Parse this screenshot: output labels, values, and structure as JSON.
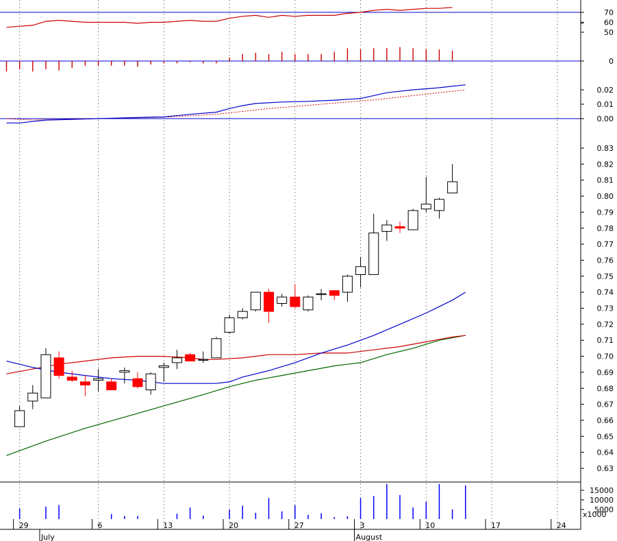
{
  "colors": {
    "up_candle": "#ffffff",
    "down_candle": "#ff0000",
    "candle_border": "#000000",
    "ma_fast": "#0000cc",
    "ma_mid": "#cc0000",
    "ma_slow": "#006600",
    "rsi": "#cc0000",
    "macd": "#0000cc",
    "macd_signal": "#cc0000",
    "momentum": "#cc0000",
    "volume": "#0000ff",
    "panel_line": "#0000cc",
    "grid": "#999999"
  },
  "chart_data": {
    "type": "candlestick",
    "x_labels": [
      {
        "day": 1,
        "label": "29"
      },
      {
        "day": 7,
        "label": "6"
      },
      {
        "day": 12,
        "label": "13"
      },
      {
        "day": 17,
        "label": "20"
      },
      {
        "day": 22,
        "label": "27"
      },
      {
        "day": 27,
        "label": "3"
      },
      {
        "day": 32,
        "label": "10"
      },
      {
        "day": 37,
        "label": "17"
      },
      {
        "day": 42,
        "label": "24"
      }
    ],
    "month_labels": [
      {
        "day": 3,
        "label": "July"
      },
      {
        "day": 27,
        "label": "August"
      }
    ],
    "price_panel": {
      "ylim": [
        0.62,
        0.835
      ],
      "yticks": [
        "0.63",
        "0.64",
        "0.65",
        "0.66",
        "0.67",
        "0.68",
        "0.69",
        "0.70",
        "0.71",
        "0.72",
        "0.73",
        "0.74",
        "0.75",
        "0.76",
        "0.77",
        "0.78",
        "0.79",
        "0.80",
        "0.81",
        "0.82",
        "0.83"
      ],
      "candles": [
        {
          "day": 1,
          "o": 0.656,
          "h": 0.669,
          "l": 0.656,
          "c": 0.666
        },
        {
          "day": 2,
          "o": 0.672,
          "h": 0.682,
          "l": 0.667,
          "c": 0.677
        },
        {
          "day": 3,
          "o": 0.674,
          "h": 0.705,
          "l": 0.674,
          "c": 0.701
        },
        {
          "day": 4,
          "o": 0.699,
          "h": 0.703,
          "l": 0.686,
          "c": 0.688
        },
        {
          "day": 5,
          "o": 0.687,
          "h": 0.691,
          "l": 0.684,
          "c": 0.685
        },
        {
          "day": 6,
          "o": 0.684,
          "h": 0.688,
          "l": 0.675,
          "c": 0.682
        },
        {
          "day": 7,
          "o": 0.685,
          "h": 0.692,
          "l": 0.678,
          "c": 0.686
        },
        {
          "day": 8,
          "o": 0.684,
          "h": 0.686,
          "l": 0.679,
          "c": 0.679
        },
        {
          "day": 9,
          "o": 0.69,
          "h": 0.693,
          "l": 0.683,
          "c": 0.691
        },
        {
          "day": 10,
          "o": 0.686,
          "h": 0.69,
          "l": 0.68,
          "c": 0.681
        },
        {
          "day": 11,
          "o": 0.679,
          "h": 0.69,
          "l": 0.676,
          "c": 0.689
        },
        {
          "day": 12,
          "o": 0.693,
          "h": 0.696,
          "l": 0.684,
          "c": 0.694
        },
        {
          "day": 13,
          "o": 0.696,
          "h": 0.704,
          "l": 0.692,
          "c": 0.699
        },
        {
          "day": 14,
          "o": 0.701,
          "h": 0.702,
          "l": 0.697,
          "c": 0.697
        },
        {
          "day": 15,
          "o": 0.698,
          "h": 0.703,
          "l": 0.696,
          "c": 0.698
        },
        {
          "day": 16,
          "o": 0.699,
          "h": 0.712,
          "l": 0.699,
          "c": 0.711
        },
        {
          "day": 17,
          "o": 0.715,
          "h": 0.726,
          "l": 0.714,
          "c": 0.724
        },
        {
          "day": 18,
          "o": 0.724,
          "h": 0.73,
          "l": 0.723,
          "c": 0.728
        },
        {
          "day": 19,
          "o": 0.729,
          "h": 0.74,
          "l": 0.728,
          "c": 0.74
        },
        {
          "day": 20,
          "o": 0.74,
          "h": 0.742,
          "l": 0.721,
          "c": 0.728
        },
        {
          "day": 21,
          "o": 0.733,
          "h": 0.739,
          "l": 0.731,
          "c": 0.737
        },
        {
          "day": 22,
          "o": 0.737,
          "h": 0.745,
          "l": 0.73,
          "c": 0.731
        },
        {
          "day": 23,
          "o": 0.729,
          "h": 0.738,
          "l": 0.728,
          "c": 0.737
        },
        {
          "day": 24,
          "o": 0.739,
          "h": 0.742,
          "l": 0.735,
          "c": 0.739
        },
        {
          "day": 25,
          "o": 0.741,
          "h": 0.741,
          "l": 0.735,
          "c": 0.738
        },
        {
          "day": 26,
          "o": 0.74,
          "h": 0.751,
          "l": 0.734,
          "c": 0.75
        },
        {
          "day": 27,
          "o": 0.751,
          "h": 0.762,
          "l": 0.743,
          "c": 0.756
        },
        {
          "day": 28,
          "o": 0.751,
          "h": 0.789,
          "l": 0.751,
          "c": 0.777
        },
        {
          "day": 29,
          "o": 0.778,
          "h": 0.785,
          "l": 0.772,
          "c": 0.782
        },
        {
          "day": 30,
          "o": 0.781,
          "h": 0.784,
          "l": 0.777,
          "c": 0.78
        },
        {
          "day": 31,
          "o": 0.779,
          "h": 0.792,
          "l": 0.779,
          "c": 0.791
        },
        {
          "day": 32,
          "o": 0.792,
          "h": 0.812,
          "l": 0.79,
          "c": 0.795
        },
        {
          "day": 33,
          "o": 0.791,
          "h": 0.799,
          "l": 0.786,
          "c": 0.798
        },
        {
          "day": 34,
          "o": 0.802,
          "h": 0.82,
          "l": 0.802,
          "c": 0.809
        }
      ],
      "ma_fast": [
        [
          0,
          0.697
        ],
        [
          2,
          0.693
        ],
        [
          4,
          0.69
        ],
        [
          6,
          0.688
        ],
        [
          8,
          0.686
        ],
        [
          10,
          0.685
        ],
        [
          12,
          0.683
        ],
        [
          14,
          0.683
        ],
        [
          16,
          0.683
        ],
        [
          17,
          0.684
        ],
        [
          18,
          0.687
        ],
        [
          20,
          0.691
        ],
        [
          22,
          0.696
        ],
        [
          24,
          0.702
        ],
        [
          26,
          0.707
        ],
        [
          28,
          0.713
        ],
        [
          30,
          0.72
        ],
        [
          32,
          0.727
        ],
        [
          34,
          0.735
        ],
        [
          35,
          0.74
        ]
      ],
      "ma_mid": [
        [
          0,
          0.689
        ],
        [
          2,
          0.692
        ],
        [
          4,
          0.695
        ],
        [
          6,
          0.697
        ],
        [
          8,
          0.699
        ],
        [
          10,
          0.7
        ],
        [
          12,
          0.7
        ],
        [
          14,
          0.699
        ],
        [
          15,
          0.698
        ],
        [
          16,
          0.698
        ],
        [
          18,
          0.699
        ],
        [
          20,
          0.701
        ],
        [
          22,
          0.701
        ],
        [
          24,
          0.702
        ],
        [
          26,
          0.702
        ],
        [
          28,
          0.704
        ],
        [
          30,
          0.706
        ],
        [
          32,
          0.709
        ],
        [
          34,
          0.712
        ],
        [
          35,
          0.713
        ]
      ],
      "ma_slow": [
        [
          0,
          0.638
        ],
        [
          3,
          0.647
        ],
        [
          6,
          0.655
        ],
        [
          9,
          0.662
        ],
        [
          12,
          0.669
        ],
        [
          15,
          0.676
        ],
        [
          17,
          0.681
        ],
        [
          19,
          0.685
        ],
        [
          21,
          0.688
        ],
        [
          23,
          0.691
        ],
        [
          25,
          0.694
        ],
        [
          27,
          0.696
        ],
        [
          29,
          0.701
        ],
        [
          31,
          0.705
        ],
        [
          33,
          0.71
        ],
        [
          35,
          0.713
        ]
      ]
    },
    "rsi_panel": {
      "ylim": [
        45,
        75
      ],
      "yticks": [
        "50",
        "60",
        "70"
      ],
      "reference": 70,
      "values": [
        [
          0,
          55
        ],
        [
          1,
          56
        ],
        [
          2,
          57
        ],
        [
          3,
          61
        ],
        [
          4,
          62
        ],
        [
          5,
          61
        ],
        [
          6,
          60
        ],
        [
          7,
          60
        ],
        [
          8,
          60
        ],
        [
          9,
          60
        ],
        [
          10,
          59
        ],
        [
          11,
          60
        ],
        [
          12,
          60
        ],
        [
          13,
          61
        ],
        [
          14,
          62
        ],
        [
          15,
          61
        ],
        [
          16,
          61
        ],
        [
          17,
          64
        ],
        [
          18,
          66
        ],
        [
          19,
          67
        ],
        [
          20,
          65
        ],
        [
          21,
          67
        ],
        [
          22,
          66
        ],
        [
          23,
          67
        ],
        [
          24,
          67
        ],
        [
          25,
          67
        ],
        [
          26,
          69
        ],
        [
          27,
          70
        ],
        [
          28,
          72
        ],
        [
          29,
          73
        ],
        [
          30,
          72
        ],
        [
          31,
          73
        ],
        [
          32,
          74
        ],
        [
          33,
          74
        ],
        [
          34,
          75
        ]
      ]
    },
    "momentum_panel": {
      "yticks": [
        "0"
      ],
      "values": [
        -0.9,
        -0.7,
        -0.9,
        -0.7,
        -0.8,
        -0.6,
        -0.4,
        -0.4,
        -0.4,
        -0.4,
        -0.5,
        -0.3,
        -0.2,
        -0.2,
        -0.1,
        -0.2,
        -0.2,
        0.3,
        0.6,
        0.7,
        0.6,
        0.8,
        0.6,
        0.6,
        0.6,
        0.8,
        1.1,
        1.0,
        1.1,
        1.1,
        1.2,
        1.1,
        1.0,
        1.0,
        0.9
      ]
    },
    "macd_panel": {
      "ylim": [
        -0.003,
        0.027
      ],
      "yticks": [
        "0.00",
        "0.01",
        "0.02"
      ],
      "reference": 0,
      "macd": [
        [
          0,
          -0.003
        ],
        [
          1,
          -0.003
        ],
        [
          2,
          -0.002
        ],
        [
          3,
          -0.001
        ],
        [
          5,
          -0.0005
        ],
        [
          7,
          0.0
        ],
        [
          9,
          0.0005
        ],
        [
          11,
          0.001
        ],
        [
          12,
          0.0012
        ],
        [
          14,
          0.003
        ],
        [
          16,
          0.0045
        ],
        [
          17,
          0.007
        ],
        [
          18,
          0.009
        ],
        [
          19,
          0.0105
        ],
        [
          21,
          0.0115
        ],
        [
          23,
          0.012
        ],
        [
          25,
          0.0128
        ],
        [
          27,
          0.014
        ],
        [
          28,
          0.016
        ],
        [
          29,
          0.018
        ],
        [
          31,
          0.02
        ],
        [
          33,
          0.0215
        ],
        [
          35,
          0.0235
        ]
      ],
      "signal": [
        [
          0,
          0.0
        ],
        [
          2,
          -0.001
        ],
        [
          4,
          -0.0005
        ],
        [
          6,
          0.0
        ],
        [
          8,
          0.0002
        ],
        [
          10,
          0.0005
        ],
        [
          12,
          0.001
        ],
        [
          14,
          0.002
        ],
        [
          16,
          0.003
        ],
        [
          18,
          0.005
        ],
        [
          20,
          0.007
        ],
        [
          22,
          0.0085
        ],
        [
          24,
          0.01
        ],
        [
          26,
          0.0115
        ],
        [
          28,
          0.013
        ],
        [
          30,
          0.015
        ],
        [
          32,
          0.017
        ],
        [
          35,
          0.02
        ]
      ]
    },
    "volume_panel": {
      "ylim": [
        0,
        18000
      ],
      "yticks": [
        "15000",
        "10000",
        "5000"
      ],
      "unit_label": "x1000",
      "values": [
        0,
        5500,
        0,
        6500,
        7300,
        0,
        0,
        0,
        2600,
        1600,
        1600,
        0,
        0,
        2800,
        6000,
        1800,
        0,
        5000,
        7000,
        3300,
        11000,
        4000,
        7200,
        2200,
        3000,
        1000,
        1500,
        11000,
        12000,
        22000,
        12500,
        6000,
        9000,
        20500,
        5000,
        17500
      ]
    }
  }
}
